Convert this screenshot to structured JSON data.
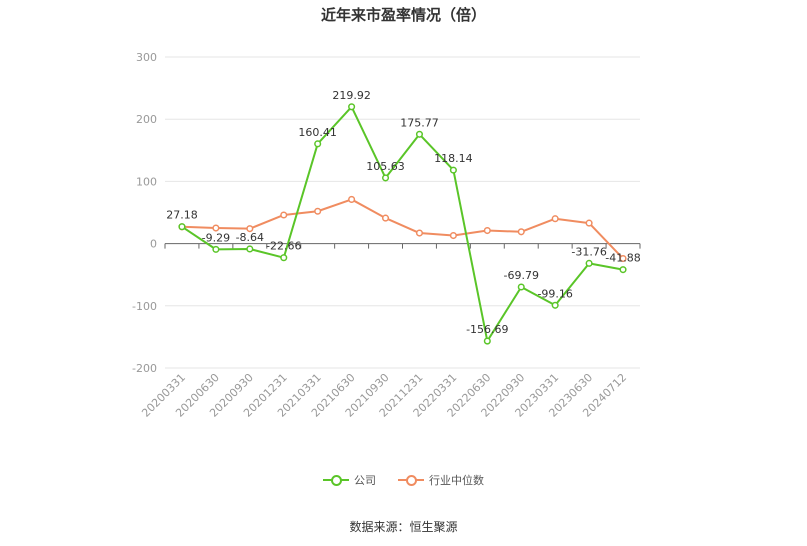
{
  "title": "近年来市盈率情况（倍）",
  "source": "数据来源：恒生聚源",
  "colors": {
    "company": "#5ac528",
    "industry": "#f08c60",
    "grid": "#e6e6e6",
    "axis": "#666666",
    "text": "#333333",
    "tick": "#999999"
  },
  "legend": {
    "company": "公司",
    "industry": "行业中位数"
  },
  "chart_data": {
    "type": "line",
    "title": "近年来市盈率情况（倍）",
    "xlabel": "",
    "ylabel": "",
    "ylim": [
      -200,
      300
    ],
    "yticks": [
      -200,
      -100,
      0,
      100,
      200,
      300
    ],
    "grid": true,
    "legend_position": "bottom",
    "categories": [
      "20200331",
      "20200630",
      "20200930",
      "20201231",
      "20210331",
      "20210630",
      "20210930",
      "20211231",
      "20220331",
      "20220630",
      "20220930",
      "20230331",
      "20230630",
      "20240712"
    ],
    "series": [
      {
        "name": "公司",
        "values": [
          27.18,
          -9.29,
          -8.64,
          -22.66,
          160.41,
          219.92,
          105.63,
          175.77,
          118.14,
          -156.69,
          -69.79,
          -99.16,
          -31.76,
          -41.88
        ],
        "labels": [
          "27.18",
          "-9.29",
          "-8.64",
          "-22.66",
          "160.41",
          "219.92",
          "105.63",
          "175.77",
          "118.14",
          "-156.69",
          "-69.79",
          "-99.16",
          "-31.76",
          "-41.88"
        ]
      },
      {
        "name": "行业中位数",
        "values": [
          27,
          25,
          24,
          46,
          52,
          71,
          41,
          17,
          13,
          21,
          19,
          40,
          33,
          -24
        ]
      }
    ]
  }
}
